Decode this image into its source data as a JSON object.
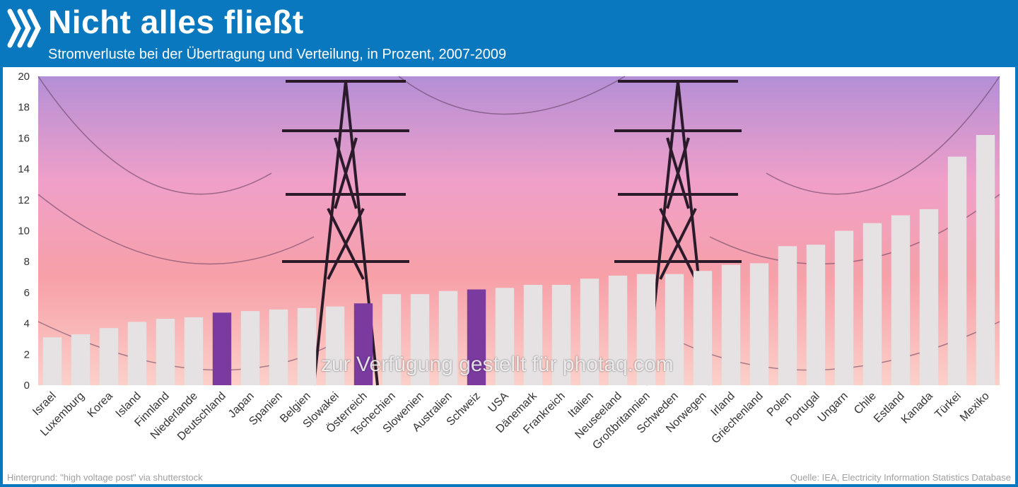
{
  "header": {
    "title": "Nicht alles fließt",
    "subtitle": "Stromverluste bei der Übertragung und Verteilung, in Prozent, 2007-2009"
  },
  "footer": {
    "left": "Hintergrund: \"high voltage post\" via shutterstock",
    "right": "Quelle: IEA, Electricity Information Statistics Database"
  },
  "watermark": "zur Verfügung gestellt für photaq.com",
  "colors": {
    "header_bg": "#0a78be",
    "bar_default": "#e6e2e4",
    "bar_highlight": "#7a3aa0",
    "axis_text": "#333333"
  },
  "chart_data": {
    "type": "bar",
    "title": "Nicht alles fließt",
    "subtitle": "Stromverluste bei der Übertragung und Verteilung, in Prozent, 2007-2009",
    "xlabel": "",
    "ylabel": "",
    "ylim": [
      0,
      20
    ],
    "yticks": [
      0,
      2,
      4,
      6,
      8,
      10,
      12,
      14,
      16,
      18,
      20
    ],
    "grid": false,
    "categories": [
      "Israel",
      "Luxemburg",
      "Korea",
      "Island",
      "Finnland",
      "Niederlande",
      "Deutschland",
      "Japan",
      "Spanien",
      "Belgien",
      "Slowakei",
      "Österreich",
      "Tschechien",
      "Slowenien",
      "Australien",
      "Schweiz",
      "USA",
      "Dänemark",
      "Frankreich",
      "Italien",
      "Neuseeland",
      "Großbritannien",
      "Schweden",
      "Norwegen",
      "Irland",
      "Griechenland",
      "Polen",
      "Portugal",
      "Ungarn",
      "Chile",
      "Estland",
      "Kanada",
      "Türkei",
      "Mexiko"
    ],
    "values": [
      3.1,
      3.3,
      3.7,
      4.1,
      4.3,
      4.4,
      4.7,
      4.8,
      4.9,
      5.0,
      5.1,
      5.3,
      5.9,
      5.9,
      6.1,
      6.2,
      6.3,
      6.5,
      6.5,
      6.9,
      7.1,
      7.2,
      7.2,
      7.4,
      7.8,
      7.9,
      9.0,
      9.1,
      10.0,
      10.5,
      11.0,
      11.4,
      14.8,
      16.2
    ],
    "highlighted": [
      "Deutschland",
      "Österreich",
      "Schweiz"
    ]
  }
}
